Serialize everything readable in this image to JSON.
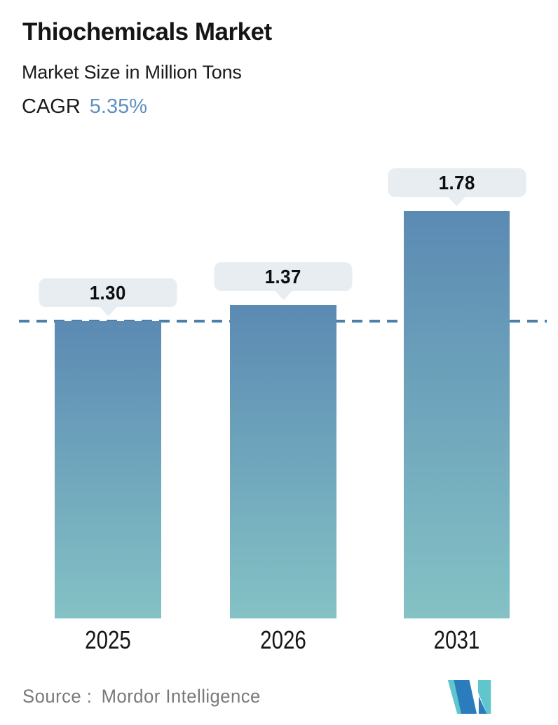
{
  "header": {
    "title": "Thiochemicals Market",
    "subtitle": "Market Size in Million Tons",
    "cagr_label": "CAGR",
    "cagr_value": "5.35%"
  },
  "chart_data": {
    "type": "bar",
    "title": "Thiochemicals Market",
    "subtitle": "Market Size in Million Tons",
    "unit": "Million Tons",
    "categories": [
      "2025",
      "2026",
      "2031"
    ],
    "values": [
      1.3,
      1.37,
      1.78
    ],
    "value_labels": [
      "1.30",
      "1.37",
      "1.78"
    ],
    "cagr_percent": "5.35%",
    "ylim": [
      0,
      2.0
    ],
    "grid": false,
    "legend": "none",
    "reference_line": {
      "value": 1.3,
      "style": "dashed",
      "color": "#4c80a9"
    },
    "bar_gradient_top": "#5b8ab3",
    "bar_gradient_bottom": "#84c2c5",
    "tooltip_background": "#e7edf0"
  },
  "footer": {
    "source_label": "Source :",
    "source_value": "Mordor Intelligence"
  },
  "colors": {
    "accent_blue": "#6090bf",
    "text_dark": "#141517",
    "text_gray": "#77797b",
    "logo_blue": "#2b7cbd",
    "logo_teal": "#5fc6cb"
  }
}
